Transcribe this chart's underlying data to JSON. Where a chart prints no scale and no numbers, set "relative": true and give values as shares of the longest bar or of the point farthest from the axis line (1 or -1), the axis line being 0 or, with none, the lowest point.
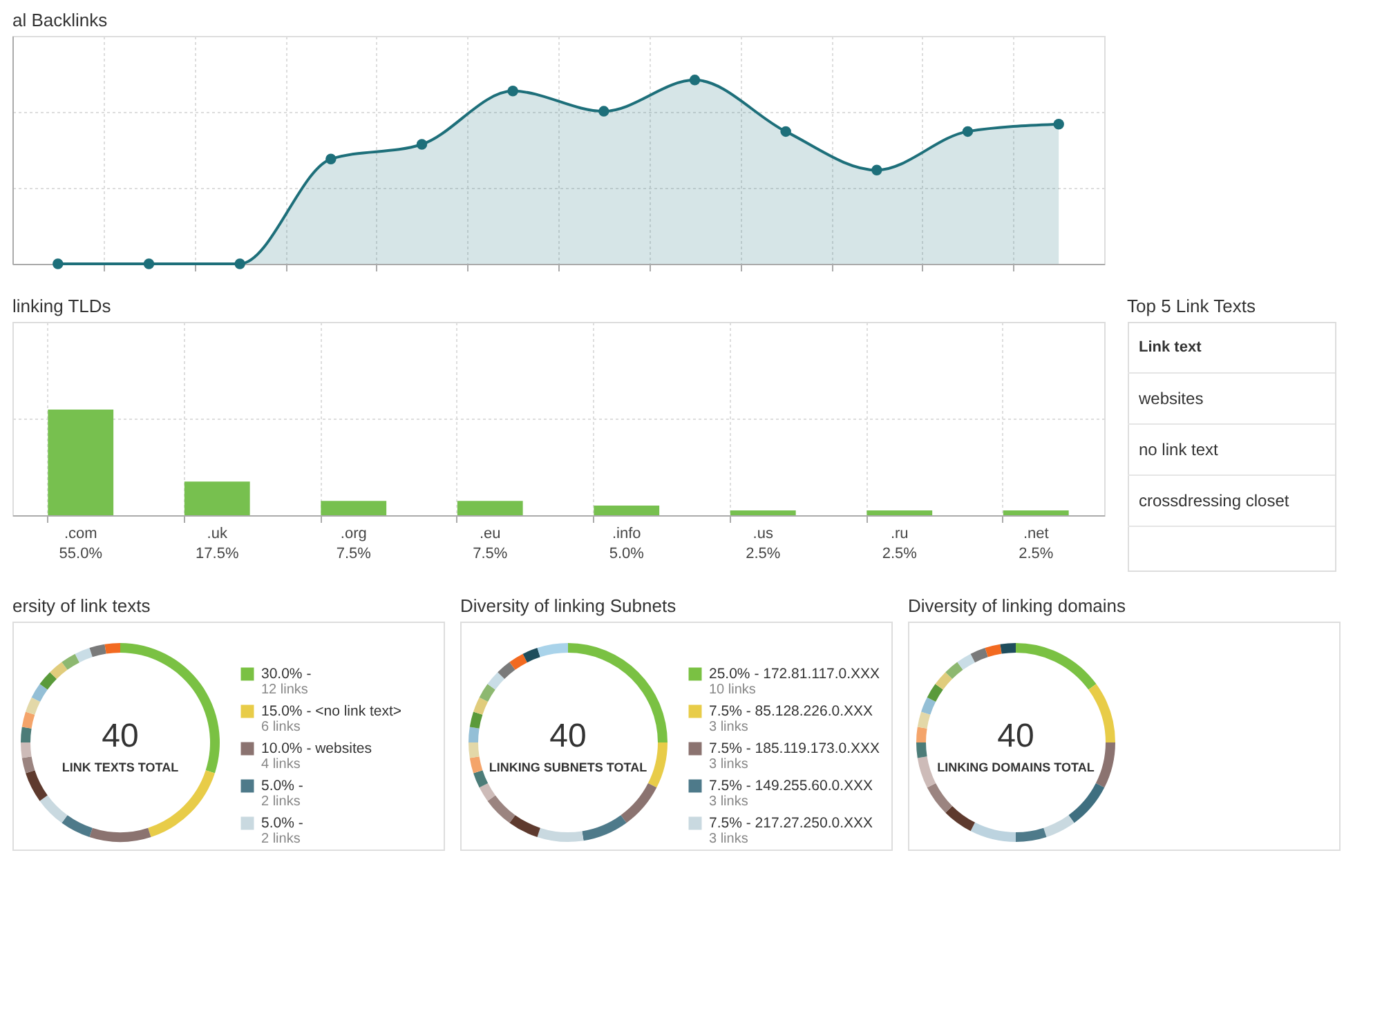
{
  "chart_data": [
    {
      "type": "area",
      "title": "al Backlinks",
      "categories": [
        null,
        null,
        null,
        null,
        null,
        null,
        null,
        null,
        null,
        null,
        null,
        null
      ],
      "series": [
        {
          "color": "#1d6f7a",
          "values": [
            0,
            0,
            0,
            0.57,
            0.65,
            0.94,
            0.83,
            1,
            0.72,
            0.51,
            0.72,
            0.76
          ]
        }
      ],
      "relative": true,
      "grid": true,
      "marker": "circle",
      "tick_labels": false
    },
    {
      "type": "bar",
      "title": "linking TLDs",
      "categories": [
        ".com",
        ".uk",
        ".org",
        ".eu",
        ".info",
        ".us",
        ".ru",
        ".net"
      ],
      "values": [
        55,
        17.5,
        7.5,
        7.5,
        5,
        2.5,
        2.5,
        2.5
      ],
      "value_labels": [
        "55.0%",
        "17.5%",
        "7.5%",
        "7.5%",
        "5.0%",
        "2.5%",
        "2.5%",
        "2.5%"
      ],
      "color": "#77c04f",
      "grid": true,
      "tick_labels": "x"
    },
    {
      "type": "other",
      "title": "Top 5 Link Texts",
      "annotations": [
        "Link text",
        "websites",
        "no link text",
        "crossdressing closet"
      ]
    },
    {
      "type": "donut",
      "title": "ersity of link texts",
      "legend": "right",
      "categories": [
        "30.0% -",
        "15.0% - <no link text>",
        "10.0% - websites",
        "5.0% -",
        "5.0% -",
        null,
        null,
        null,
        null,
        null,
        null,
        null,
        null,
        null,
        null,
        null,
        null,
        null
      ],
      "value_labels": [
        "12 links",
        "6 links",
        "4 links",
        "2 links",
        "2 links",
        null,
        null,
        null,
        null,
        null,
        null,
        null,
        null,
        null,
        null,
        null,
        null,
        null
      ],
      "values": [
        12,
        6,
        4,
        2,
        2,
        2,
        1,
        1,
        1,
        1,
        1,
        1,
        1,
        1,
        1,
        1,
        1,
        1
      ],
      "colors": [
        "#7ac143",
        "#e8cc48",
        "#8b7370",
        "#4e7a8a",
        "#c9d9e0",
        "#5e3a2e",
        "#9b8480",
        "#cdbbb8",
        "#4c7c78",
        "#f4a46a",
        "#e3d8a8",
        "#94bfd6",
        "#5a9a3a",
        "#e0cc7c",
        "#8db870",
        "#c9dde6",
        "#7a7a7a",
        "#f26a21"
      ],
      "annotations": [
        "40",
        "LINK TEXTS TOTAL"
      ]
    },
    {
      "type": "donut",
      "title": "Diversity of linking Subnets",
      "legend": "right",
      "categories": [
        "25.0% - 172.81.117.0.XXX",
        "7.5% - 85.128.226.0.XXX",
        "7.5% - 185.119.173.0.XXX",
        "7.5% - 149.255.60.0.XXX",
        "7.5% - 217.27.250.0.XXX",
        null,
        null,
        null,
        null,
        null,
        null,
        null,
        null,
        null,
        null,
        null,
        null,
        null,
        null,
        null
      ],
      "value_labels": [
        "10 links",
        "3 links",
        "3 links",
        "3 links",
        "3 links",
        null,
        null,
        null,
        null,
        null,
        null,
        null,
        null,
        null,
        null,
        null,
        null,
        null,
        null,
        null
      ],
      "values": [
        10,
        3,
        3,
        3,
        3,
        2,
        2,
        1,
        1,
        1,
        1,
        1,
        1,
        1,
        1,
        1,
        1,
        1,
        1,
        2
      ],
      "colors": [
        "#7ac143",
        "#e8cc48",
        "#8b7370",
        "#4e7a8a",
        "#c9d9e0",
        "#5e3a2e",
        "#9b8480",
        "#cdbbb8",
        "#4c7c78",
        "#f4a46a",
        "#e3d8a8",
        "#94bfd6",
        "#5a9a3a",
        "#e0cc7c",
        "#8db870",
        "#c9dde6",
        "#7a7a7a",
        "#f26a21",
        "#1e4d5c",
        "#a9d3ea"
      ],
      "annotations": [
        "40",
        "LINKING SUBNETS TOTAL"
      ]
    },
    {
      "type": "donut",
      "title": "Diversity of linking domains",
      "categories": [
        null,
        null,
        null,
        null,
        null,
        null,
        null,
        null,
        null,
        null,
        null,
        null,
        null,
        null,
        null,
        null,
        null,
        null,
        null,
        null,
        null
      ],
      "values": [
        15,
        10,
        7.5,
        7.5,
        5,
        5,
        7.5,
        5,
        5,
        5,
        2.5,
        2.5,
        2.5,
        2.5,
        2.5,
        2.5,
        2.5,
        2.5,
        2.5,
        2.5,
        2.5
      ],
      "colors": [
        "#7ac143",
        "#e8cc48",
        "#8b7370",
        "#3f6f80",
        "#c9d9e0",
        "#4e7a8a",
        "#bcd3df",
        "#5e3a2e",
        "#9b8480",
        "#cdbbb8",
        "#4c7c78",
        "#f4a46a",
        "#e3d8a8",
        "#94bfd6",
        "#5a9a3a",
        "#e0cc7c",
        "#8db870",
        "#c9dde6",
        "#7a7a7a",
        "#f26a21",
        "#1e4d5c"
      ],
      "annotations": [
        "40",
        "LINKING DOMAINS TOTAL"
      ]
    }
  ]
}
